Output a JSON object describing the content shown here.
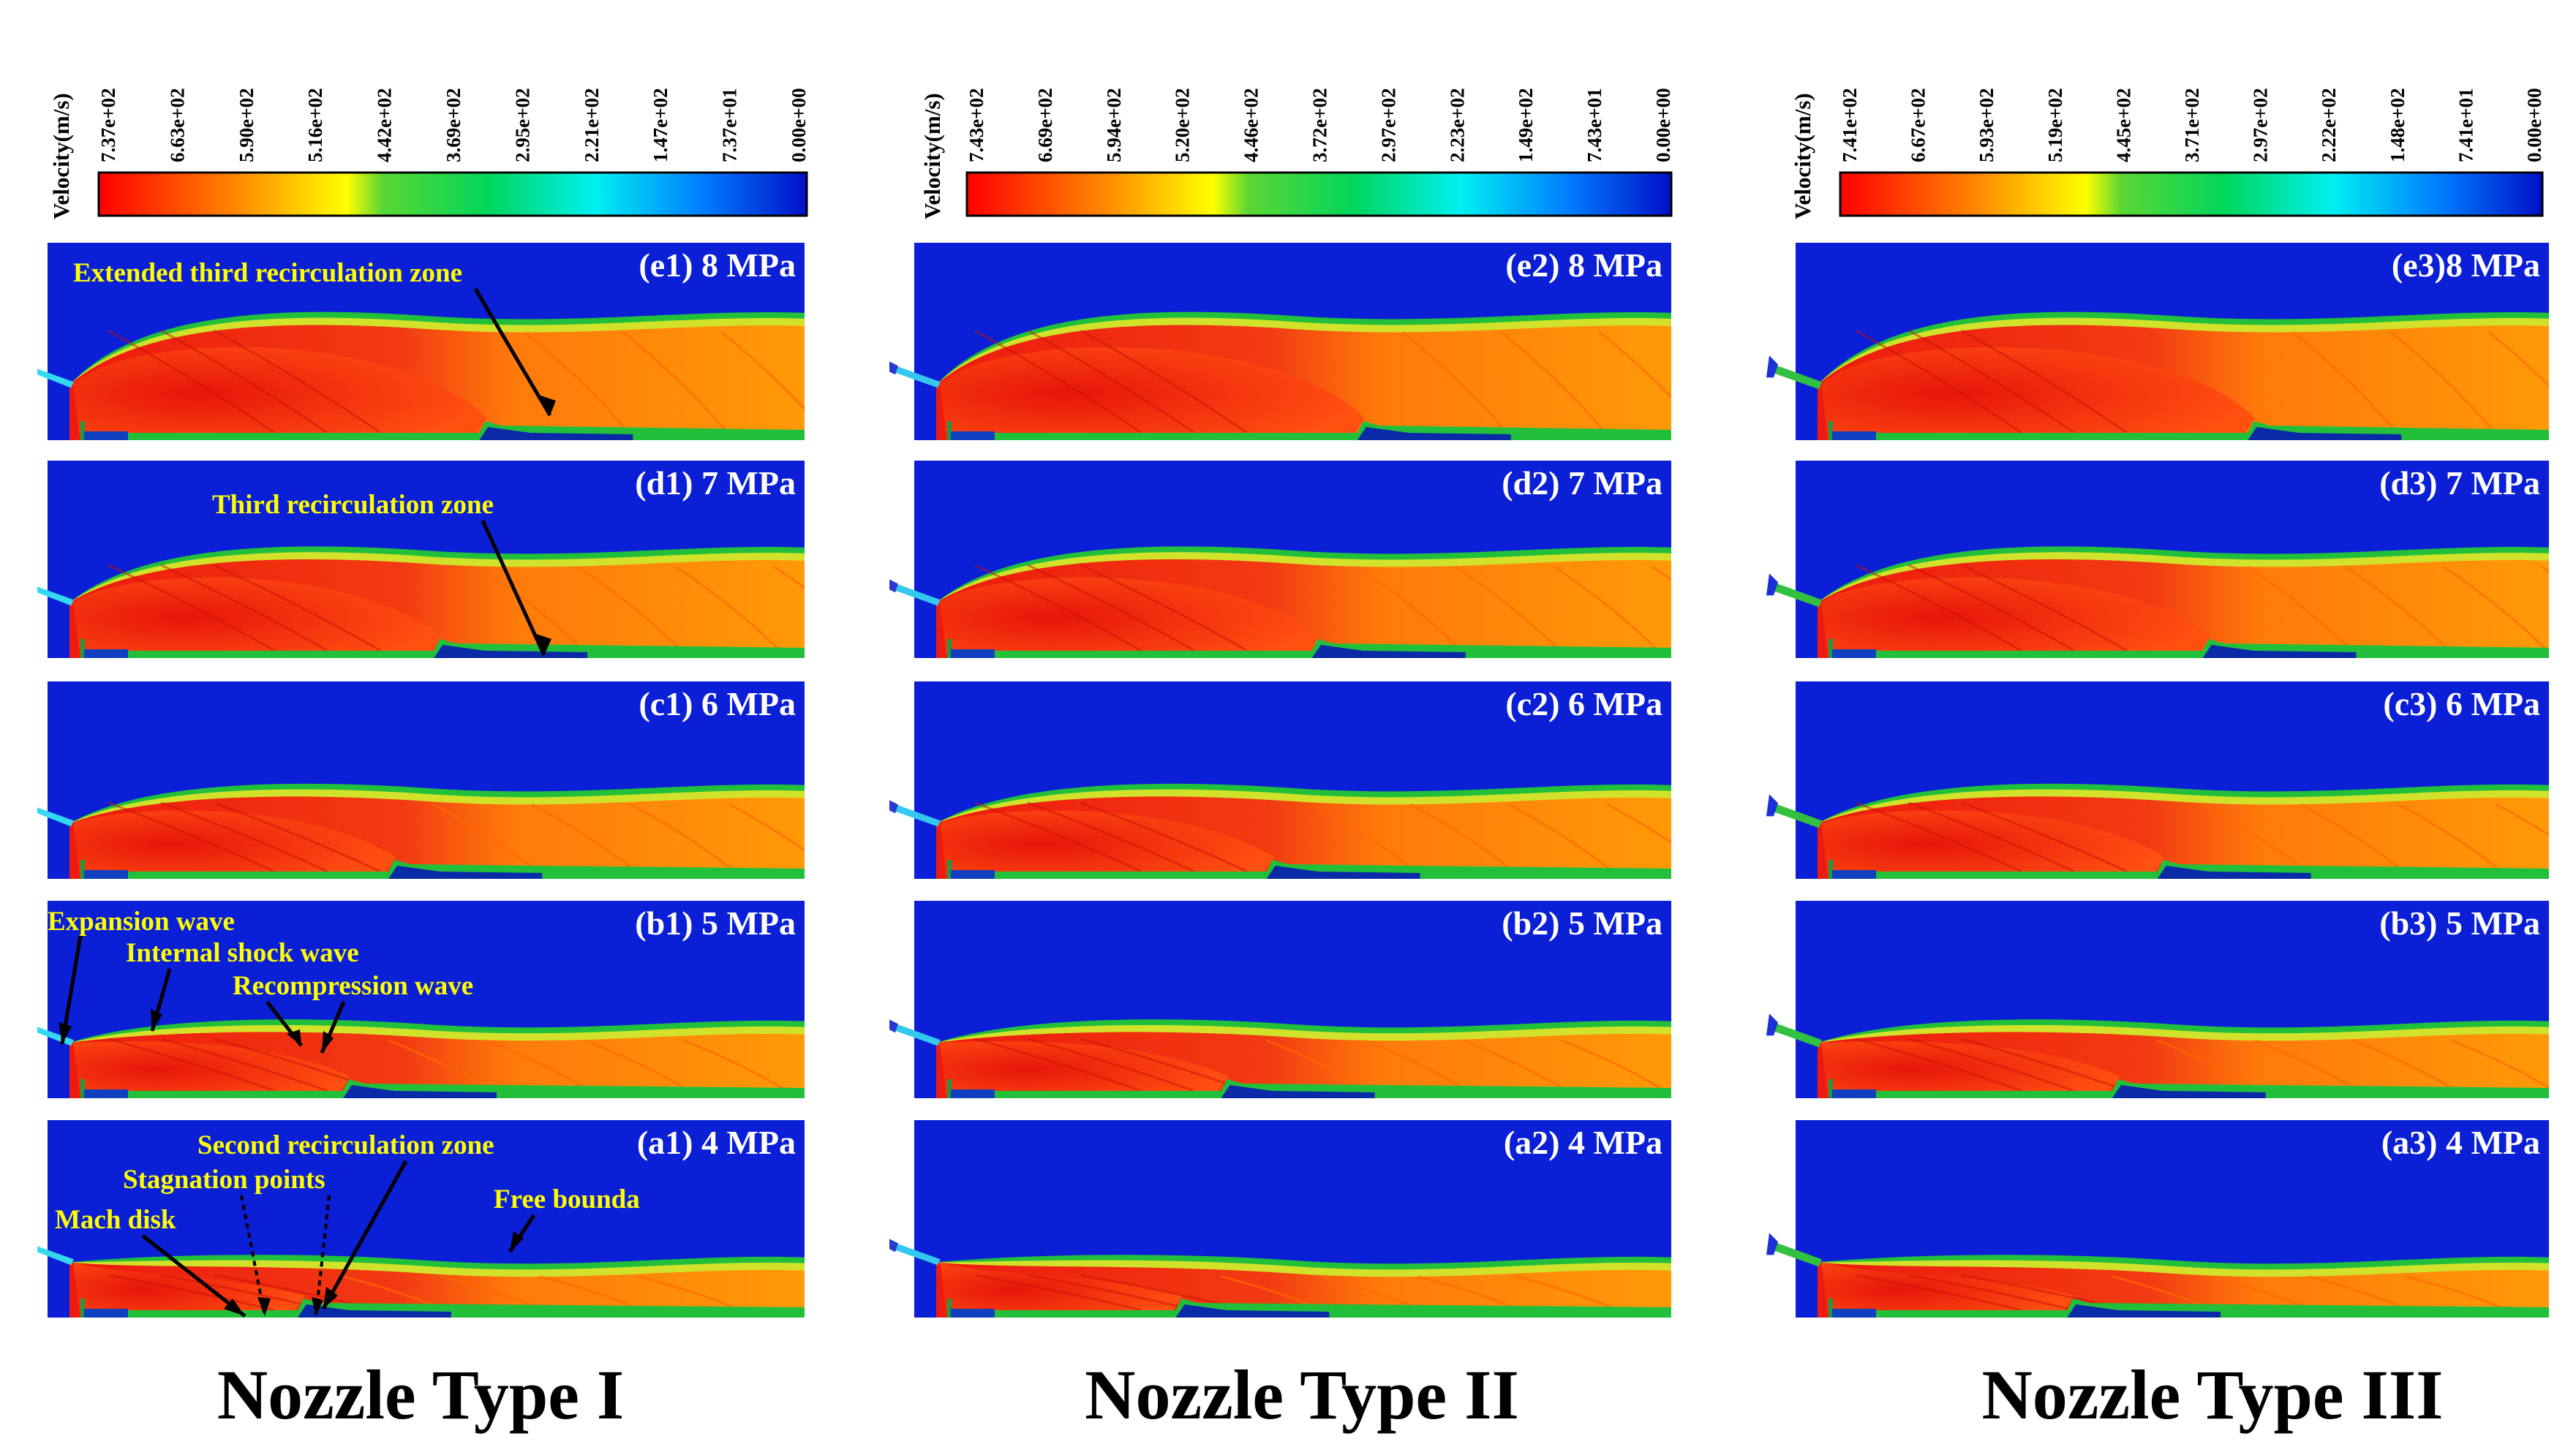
{
  "figure": {
    "colorbar_label": "Velocity(m/s)",
    "colors": {
      "background_flow": "#0a1fd6",
      "jet_core": "#f01b0f",
      "jet_body": "#ff8c00",
      "shear": "#22c03a",
      "wave_text": "#ffff00"
    },
    "columns": [
      {
        "title": "Nozzle Type I",
        "nozzle": "type1",
        "colorbar_ticks": [
          "7.37e+02",
          "6.63e+02",
          "5.90e+02",
          "5.16e+02",
          "4.42e+02",
          "3.69e+02",
          "2.95e+02",
          "2.21e+02",
          "1.47e+02",
          "7.37e+01",
          "0.00e+00"
        ],
        "panels": [
          {
            "label": "(e1) 8 MPa",
            "pressure_mpa": 8
          },
          {
            "label": "(d1) 7 MPa",
            "pressure_mpa": 7
          },
          {
            "label": "(c1) 6 MPa",
            "pressure_mpa": 6
          },
          {
            "label": "(b1) 5 MPa",
            "pressure_mpa": 5
          },
          {
            "label": "(a1) 4 MPa",
            "pressure_mpa": 4
          }
        ]
      },
      {
        "title": "Nozzle Type II",
        "nozzle": "type2",
        "colorbar_ticks": [
          "7.43e+02",
          "6.69e+02",
          "5.94e+02",
          "5.20e+02",
          "4.46e+02",
          "3.72e+02",
          "2.97e+02",
          "2.23e+02",
          "1.49e+02",
          "7.43e+01",
          "0.00e+00"
        ],
        "panels": [
          {
            "label": "(e2) 8 MPa",
            "pressure_mpa": 8
          },
          {
            "label": "(d2) 7 MPa",
            "pressure_mpa": 7
          },
          {
            "label": "(c2) 6 MPa",
            "pressure_mpa": 6
          },
          {
            "label": "(b2) 5 MPa",
            "pressure_mpa": 5
          },
          {
            "label": "(a2) 4 MPa",
            "pressure_mpa": 4
          }
        ]
      },
      {
        "title": "Nozzle Type III",
        "nozzle": "type3",
        "colorbar_ticks": [
          "7.41e+02",
          "6.67e+02",
          "5.93e+02",
          "5.19e+02",
          "4.45e+02",
          "3.71e+02",
          "2.97e+02",
          "2.22e+02",
          "1.48e+02",
          "7.41e+01",
          "0.00e+00"
        ],
        "panels": [
          {
            "label": "(e3)8 MPa",
            "pressure_mpa": 8
          },
          {
            "label": "(d3) 7 MPa",
            "pressure_mpa": 7
          },
          {
            "label": "(c3) 6 MPa",
            "pressure_mpa": 6
          },
          {
            "label": "(b3) 5 MPa",
            "pressure_mpa": 5
          },
          {
            "label": "(a3) 4 MPa",
            "pressure_mpa": 4
          }
        ]
      }
    ],
    "annotations": {
      "extended_third": "Extended third recirculation zone",
      "third": "Third recirculation zone",
      "expansion": "Expansion wave",
      "internal_shock": "Internal shock wave",
      "recompression": "Recompression wave",
      "second_recirc": "Second recirculation zone",
      "stagnation": "Stagnation points",
      "mach_disk": "Mach disk",
      "free_boundary": "Free bounda"
    }
  }
}
